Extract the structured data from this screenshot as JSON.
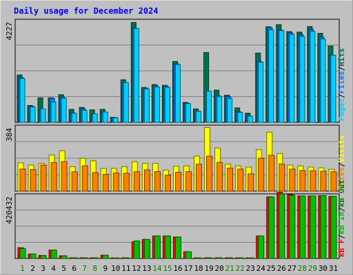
{
  "title": "Daily usage for December 2024",
  "colors": {
    "background": "#c0c0c0",
    "title": "#0000ff",
    "pages": "#00d0ff",
    "files": "#0080ff",
    "hits": "#007050",
    "visits": "#ffff00",
    "sites": "#ff8000",
    "kbin": "#00c000",
    "kbout": "#008000",
    "kbf": "#ff0000",
    "separator": "#000000"
  },
  "chart_data": [
    {
      "type": "bar",
      "panel": "hits",
      "ymax_label": "4227",
      "ylim": [
        0,
        4227
      ],
      "categories": [
        "1",
        "2",
        "3",
        "4",
        "5",
        "6",
        "7",
        "8",
        "9",
        "10",
        "11",
        "12",
        "13",
        "14",
        "15",
        "16",
        "17",
        "18",
        "19",
        "20",
        "21",
        "22",
        "23",
        "24",
        "25",
        "26",
        "27",
        "28",
        "29",
        "30",
        "31"
      ],
      "legend": [
        "Pages",
        "/",
        "Files",
        "/",
        "Hits"
      ],
      "series": [
        {
          "name": "Hits",
          "values": [
            1970,
            700,
            1020,
            1020,
            1150,
            540,
            620,
            520,
            540,
            210,
            1770,
            4150,
            1450,
            1570,
            1540,
            2530,
            830,
            560,
            2900,
            1340,
            1130,
            600,
            380,
            2880,
            3970,
            4060,
            3770,
            3750,
            3980,
            3700,
            3170
          ]
        },
        {
          "name": "Files",
          "values": [
            1860,
            670,
            530,
            1000,
            1040,
            390,
            560,
            300,
            390,
            200,
            1650,
            3900,
            1420,
            1520,
            1490,
            2430,
            790,
            470,
            510,
            1110,
            1070,
            440,
            270,
            2540,
            3940,
            3840,
            3720,
            3640,
            3860,
            3540,
            2790
          ]
        },
        {
          "name": "Pages",
          "values": [
            1820,
            640,
            560,
            850,
            1000,
            380,
            500,
            360,
            430,
            190,
            1650,
            3900,
            1390,
            1470,
            1460,
            2400,
            780,
            460,
            1300,
            1070,
            990,
            410,
            260,
            2500,
            3850,
            3810,
            3650,
            3570,
            3780,
            3460,
            2790
          ]
        }
      ]
    },
    {
      "type": "bar",
      "panel": "visits",
      "ymax_label": "384",
      "ylim": [
        0,
        384
      ],
      "categories": [
        "1",
        "2",
        "3",
        "4",
        "5",
        "6",
        "7",
        "8",
        "9",
        "10",
        "11",
        "12",
        "13",
        "14",
        "15",
        "16",
        "17",
        "18",
        "19",
        "20",
        "21",
        "22",
        "23",
        "24",
        "25",
        "26",
        "27",
        "28",
        "29",
        "30",
        "31"
      ],
      "legend": [
        "Sites",
        "/",
        "Visits"
      ],
      "series": [
        {
          "name": "Visits",
          "values": [
            168,
            155,
            165,
            215,
            240,
            145,
            195,
            180,
            135,
            135,
            145,
            175,
            165,
            165,
            125,
            148,
            150,
            208,
            378,
            256,
            160,
            150,
            143,
            246,
            350,
            223,
            155,
            150,
            143,
            139,
            130
          ]
        },
        {
          "name": "Sites",
          "values": [
            131,
            128,
            155,
            170,
            175,
            115,
            150,
            110,
            100,
            108,
            106,
            115,
            126,
            116,
            95,
            112,
            116,
            160,
            208,
            171,
            137,
            131,
            103,
            196,
            213,
            161,
            131,
            122,
            121,
            118,
            115
          ]
        }
      ]
    },
    {
      "type": "bar",
      "panel": "kbytes",
      "ymax_label": "420432",
      "ylim": [
        0,
        420432
      ],
      "categories": [
        "1",
        "2",
        "3",
        "4",
        "5",
        "6",
        "7",
        "8",
        "9",
        "10",
        "11",
        "12",
        "13",
        "14",
        "15",
        "16",
        "17",
        "18",
        "19",
        "20",
        "21",
        "22",
        "23",
        "24",
        "25",
        "26",
        "27",
        "28",
        "29",
        "30",
        "31"
      ],
      "legend": [
        "kB F",
        "/",
        "kB In",
        "/",
        "kB Out"
      ],
      "series": [
        {
          "name": "kB F",
          "values": [
            72000,
            30000,
            20000,
            56000,
            18000,
            5000,
            5000,
            5000,
            22000,
            2000,
            5000,
            111000,
            127000,
            150000,
            150000,
            143000,
            45000,
            3000,
            5000,
            5000,
            5000,
            5000,
            3000,
            150000,
            410000,
            440000,
            425000,
            416000,
            416000,
            418000,
            413000
          ]
        },
        {
          "name": "kB In",
          "values": [
            66000,
            30000,
            20000,
            56000,
            18000,
            5000,
            5000,
            5000,
            22000,
            2000,
            5000,
            117000,
            126000,
            150000,
            150000,
            143000,
            45000,
            3000,
            5000,
            5000,
            5000,
            5000,
            3000,
            150000,
            408000,
            430000,
            420000,
            416000,
            416000,
            418000,
            413000
          ]
        }
      ]
    }
  ],
  "day_labels": [
    "1",
    "2",
    "3",
    "4",
    "5",
    "6",
    "7",
    "8",
    "9",
    "10",
    "11",
    "12",
    "13",
    "14",
    "15",
    "16",
    "17",
    "18",
    "19",
    "20",
    "21",
    "22",
    "23",
    "24",
    "25",
    "26",
    "27",
    "28",
    "29",
    "30",
    "31"
  ],
  "weekend_days": [
    1,
    7,
    8,
    14,
    15,
    21,
    22,
    28,
    29
  ]
}
